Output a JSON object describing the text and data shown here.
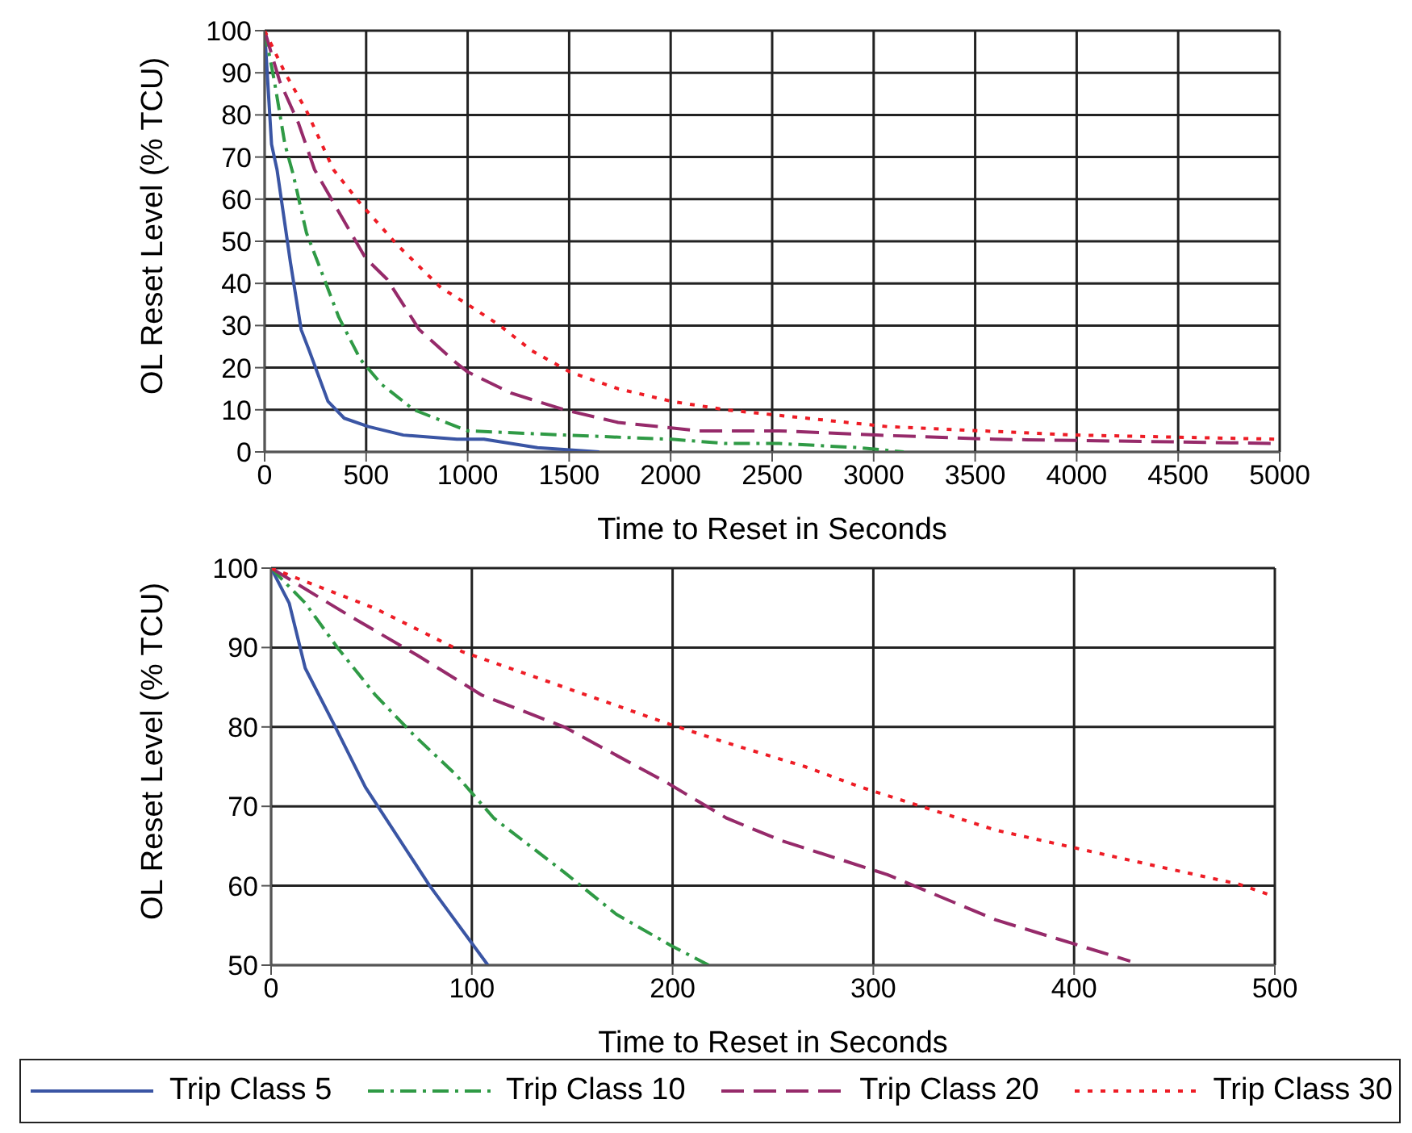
{
  "chart_data": [
    {
      "type": "line",
      "xlabel": "Time to Reset in Seconds",
      "ylabel": "OL Reset Level (% TCU)",
      "xlim": [
        0,
        5000
      ],
      "xticks": [
        0,
        500,
        1000,
        1500,
        2000,
        2500,
        3000,
        3500,
        4000,
        4500,
        5000
      ],
      "ylim": [
        0,
        100
      ],
      "yticks": [
        0,
        10,
        20,
        30,
        40,
        50,
        60,
        70,
        80,
        90,
        100
      ],
      "grid": true,
      "legend": false,
      "marker": "none",
      "series": [
        {
          "color": "#3a55a4",
          "line_style": "solid",
          "x": [
            0,
            34,
            61,
            127,
            180,
            220,
            312,
            392,
            511,
            683,
            947,
            1080,
            1344,
            1648
          ],
          "values": [
            100,
            73,
            67,
            45,
            29,
            24,
            12,
            8,
            6,
            4,
            3,
            3,
            1,
            0
          ]
        },
        {
          "color": "#2f9a45",
          "line_style": "dashdot",
          "x": [
            0,
            48,
            100,
            140,
            206,
            286,
            365,
            471,
            577,
            735,
            1000,
            1476,
            2005,
            2270,
            2534,
            2931,
            3148
          ],
          "values": [
            100,
            88,
            73,
            66,
            52,
            42,
            32,
            22,
            16,
            10,
            5,
            4,
            3,
            2,
            2,
            1,
            0
          ]
        },
        {
          "color": "#962a6a",
          "line_style": "dashed",
          "x": [
            0,
            74,
            167,
            246,
            365,
            497,
            603,
            762,
            947,
            1000,
            1212,
            1476,
            1741,
            2138,
            2534,
            3011,
            3598,
            5000
          ],
          "values": [
            100,
            88,
            78,
            67,
            57,
            46,
            41,
            29,
            21,
            19,
            14,
            10,
            7,
            5,
            5,
            4,
            3,
            2
          ]
        },
        {
          "color": "#ee1c25",
          "line_style": "dotted",
          "x": [
            0,
            100,
            206,
            339,
            471,
            656,
            868,
            1000,
            1159,
            1317,
            1503,
            1741,
            2005,
            2270,
            3068,
            3995,
            5000
          ],
          "values": [
            100,
            90,
            81,
            67,
            59,
            49,
            39,
            35,
            30,
            24,
            19,
            15,
            12,
            10,
            6,
            4,
            3
          ]
        }
      ]
    },
    {
      "type": "line",
      "xlabel": "Time to Reset in Seconds",
      "ylabel": "OL Reset Level (% TCU)",
      "xlim": [
        0,
        500
      ],
      "xticks": [
        0,
        100,
        200,
        300,
        400,
        500
      ],
      "ylim": [
        50,
        100
      ],
      "yticks": [
        50,
        60,
        70,
        80,
        90,
        100
      ],
      "grid": true,
      "legend": "bottom",
      "marker": "none",
      "series": [
        {
          "name": "Trip Class 5",
          "color": "#3a55a4",
          "line_style": "solid",
          "x": [
            0,
            9,
            17,
            32,
            47,
            79,
            108
          ],
          "values": [
            100,
            95.6,
            87.4,
            80,
            72.4,
            60,
            50
          ]
        },
        {
          "name": "Trip Class 10",
          "color": "#2f9a45",
          "line_style": "dashdot",
          "x": [
            0,
            17,
            33,
            52,
            71,
            92,
            111,
            146,
            172,
            199,
            218
          ],
          "values": [
            100,
            95.6,
            90,
            84,
            79,
            74,
            68.5,
            61.7,
            56.4,
            52.5,
            50
          ]
        },
        {
          "name": "Trip Class 20",
          "color": "#962a6a",
          "line_style": "dashed",
          "x": [
            0,
            39,
            73,
            105,
            146,
            197,
            227,
            254,
            307,
            361,
            428
          ],
          "values": [
            100,
            94,
            89,
            84,
            80,
            73,
            68.5,
            65.7,
            61.4,
            55.7,
            50.5
          ]
        },
        {
          "name": "Trip Class 30",
          "color": "#ee1c25",
          "line_style": "dotted",
          "x": [
            0,
            52,
            95,
            146,
            199,
            227,
            266,
            294,
            361,
            428,
            482,
            498
          ],
          "values": [
            100,
            94.9,
            89.5,
            85,
            80.3,
            78,
            75,
            72.4,
            67,
            63.2,
            60.2,
            58.8
          ]
        }
      ]
    }
  ]
}
